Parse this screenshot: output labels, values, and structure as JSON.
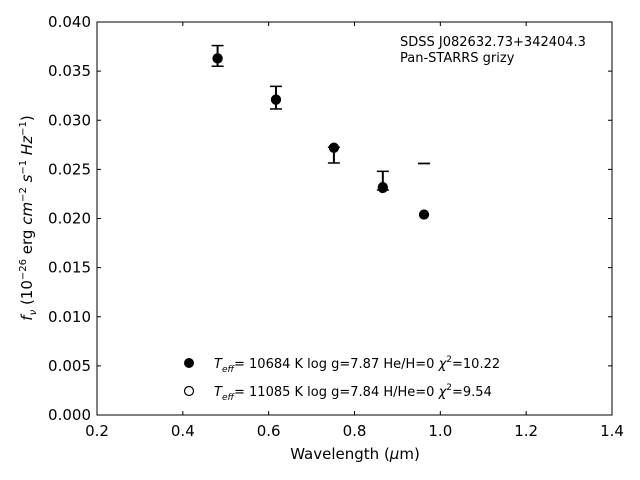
{
  "chart_data": {
    "type": "scatter",
    "title": "",
    "xlabel": {
      "pre": "Wavelength (",
      "mu": "μ",
      "post": "m)"
    },
    "ylabel": {
      "f": "f",
      "nu": "ν",
      "lead": " (10",
      "exp26": "−26",
      "erg": " erg ",
      "cm": "cm",
      "expm2": "−2",
      "s": " s",
      "expm1a": "−1",
      "hz": " Hz",
      "expm1b": "−1",
      "close": ")"
    },
    "xlim": [
      0.2,
      1.4
    ],
    "ylim": [
      0.0,
      0.04
    ],
    "xticks": [
      0.2,
      0.4,
      0.6,
      0.8,
      1.0,
      1.2,
      1.4
    ],
    "xtick_labels": [
      "0.2",
      "0.4",
      "0.6",
      "0.8",
      "1.0",
      "1.2",
      "1.4"
    ],
    "yticks": [
      0.0,
      0.005,
      0.01,
      0.015,
      0.02,
      0.025,
      0.03,
      0.035,
      0.04
    ],
    "ytick_labels": [
      "0.000",
      "0.005",
      "0.010",
      "0.015",
      "0.020",
      "0.025",
      "0.030",
      "0.035",
      "0.040"
    ],
    "annotation": [
      "SDSS J082632.73+342404.3",
      "Pan-STARRS grizy"
    ],
    "observed": {
      "x": [
        0.481,
        0.617,
        0.752,
        0.866,
        0.962
      ],
      "y": [
        0.03635,
        0.0322,
        0.0272,
        0.02325,
        0.0256
      ],
      "yerr_low": [
        0.00085,
        0.00105,
        0.00155,
        0.00035,
        0.0
      ],
      "yerr_high": [
        0.00125,
        0.00125,
        5e-05,
        0.00155,
        0.0
      ]
    },
    "series": [
      {
        "marker": "filled",
        "x": [
          0.481,
          0.617,
          0.752,
          0.866,
          0.962
        ],
        "y": [
          0.0363,
          0.0321,
          0.0272,
          0.0231,
          0.0204
        ],
        "label": {
          "T": "T",
          "sub": "eff",
          "pre": "= 10684 K  log g=7.87  He/H=0  ",
          "chi": "χ",
          "sup": "2",
          "post": "=10.22"
        }
      },
      {
        "marker": "open",
        "x": [
          0.481,
          0.617,
          0.752,
          0.866,
          0.962
        ],
        "y": [
          0.0363,
          0.0321,
          0.0272,
          0.0232,
          0.0204
        ],
        "label": {
          "T": "T",
          "sub": "eff",
          "pre": "= 11085 K  log g=7.84  H/He=0  ",
          "chi": "χ",
          "sup": "2",
          "post": "=9.54"
        }
      }
    ],
    "legend_loc": "lower-center",
    "grid": false
  }
}
